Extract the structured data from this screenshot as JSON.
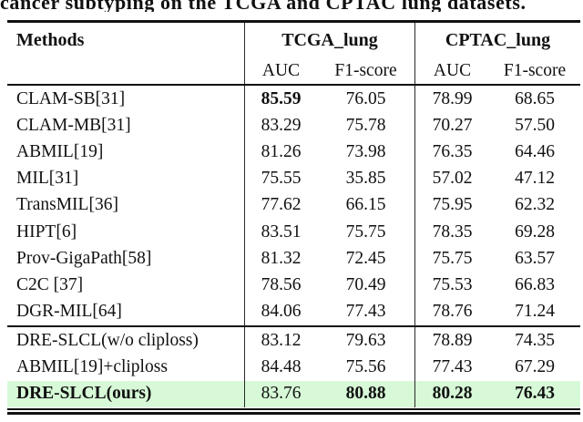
{
  "caption": "cancer subtyping on the TCGA and CPTAC lung datasets.",
  "colors": {
    "highlight": "#d7f9d7",
    "rule": "#111111"
  },
  "table": {
    "methods_header": "Methods",
    "groups": [
      {
        "label": "TCGA_lung",
        "sub": [
          "AUC",
          "F1-score"
        ]
      },
      {
        "label": "CPTAC_lung",
        "sub": [
          "AUC",
          "F1-score"
        ]
      }
    ],
    "sections": [
      {
        "rows": [
          {
            "method": "CLAM-SB[31]",
            "method_bold": false,
            "values": [
              "85.59",
              "76.05",
              "78.99",
              "68.65"
            ],
            "bold": [
              true,
              false,
              false,
              false
            ],
            "highlight": false
          },
          {
            "method": "CLAM-MB[31]",
            "method_bold": false,
            "values": [
              "83.29",
              "75.78",
              "70.27",
              "57.50"
            ],
            "bold": [
              false,
              false,
              false,
              false
            ],
            "highlight": false
          },
          {
            "method": "ABMIL[19]",
            "method_bold": false,
            "values": [
              "81.26",
              "73.98",
              "76.35",
              "64.46"
            ],
            "bold": [
              false,
              false,
              false,
              false
            ],
            "highlight": false
          },
          {
            "method": "MIL[31]",
            "method_bold": false,
            "values": [
              "75.55",
              "35.85",
              "57.02",
              "47.12"
            ],
            "bold": [
              false,
              false,
              false,
              false
            ],
            "highlight": false
          },
          {
            "method": "TransMIL[36]",
            "method_bold": false,
            "values": [
              "77.62",
              "66.15",
              "75.95",
              "62.32"
            ],
            "bold": [
              false,
              false,
              false,
              false
            ],
            "highlight": false
          },
          {
            "method": "HIPT[6]",
            "method_bold": false,
            "values": [
              "83.51",
              "75.75",
              "78.35",
              "69.28"
            ],
            "bold": [
              false,
              false,
              false,
              false
            ],
            "highlight": false
          },
          {
            "method": "Prov-GigaPath[58]",
            "method_bold": false,
            "values": [
              "81.32",
              "72.45",
              "75.75",
              "63.57"
            ],
            "bold": [
              false,
              false,
              false,
              false
            ],
            "highlight": false
          },
          {
            "method": "C2C [37]",
            "method_bold": false,
            "values": [
              "78.56",
              "70.49",
              "75.53",
              "66.83"
            ],
            "bold": [
              false,
              false,
              false,
              false
            ],
            "highlight": false
          },
          {
            "method": "DGR-MIL[64]",
            "method_bold": false,
            "values": [
              "84.06",
              "77.43",
              "78.76",
              "71.24"
            ],
            "bold": [
              false,
              false,
              false,
              false
            ],
            "highlight": false
          }
        ]
      },
      {
        "rows": [
          {
            "method": "DRE-SLCL(w/o cliploss)",
            "method_bold": false,
            "values": [
              "83.12",
              "79.63",
              "78.89",
              "74.35"
            ],
            "bold": [
              false,
              false,
              false,
              false
            ],
            "highlight": false
          },
          {
            "method": "ABMIL[19]+cliploss",
            "method_bold": false,
            "values": [
              "84.48",
              "75.56",
              "77.43",
              "67.29"
            ],
            "bold": [
              false,
              false,
              false,
              false
            ],
            "highlight": false
          },
          {
            "method": "DRE-SLCL(ours)",
            "method_bold": true,
            "values": [
              "83.76",
              "80.88",
              "80.28",
              "76.43"
            ],
            "bold": [
              false,
              true,
              true,
              true
            ],
            "highlight": true
          }
        ]
      }
    ]
  }
}
